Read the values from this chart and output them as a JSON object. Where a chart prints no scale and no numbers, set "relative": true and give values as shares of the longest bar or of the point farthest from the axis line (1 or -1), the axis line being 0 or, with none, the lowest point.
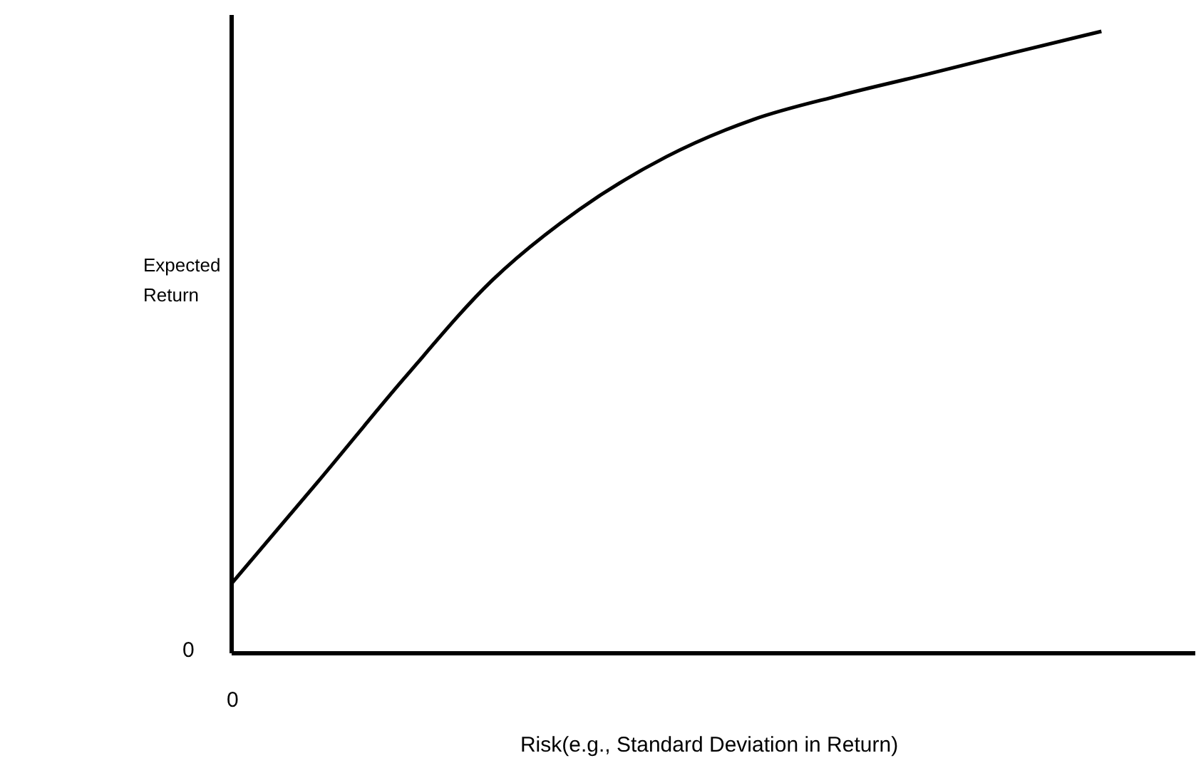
{
  "chart_data": {
    "type": "line",
    "relative": true,
    "xlabel": "Risk(e.g., Standard Deviation in Return)",
    "ylabel": "Expected Return",
    "categories": [
      null,
      null,
      null,
      null,
      null,
      null,
      null,
      null,
      null,
      null,
      null
    ],
    "series": [
      {
        "color": "#000000",
        "values": [
          0.11,
          0.275,
          0.443,
          0.599,
          0.713,
          0.798,
          0.858,
          0.897,
          0.931,
          0.966,
          1
        ]
      }
    ],
    "annotations": [
      "0",
      "0"
    ],
    "grid": false,
    "marker": "none",
    "line_style": "solid"
  }
}
